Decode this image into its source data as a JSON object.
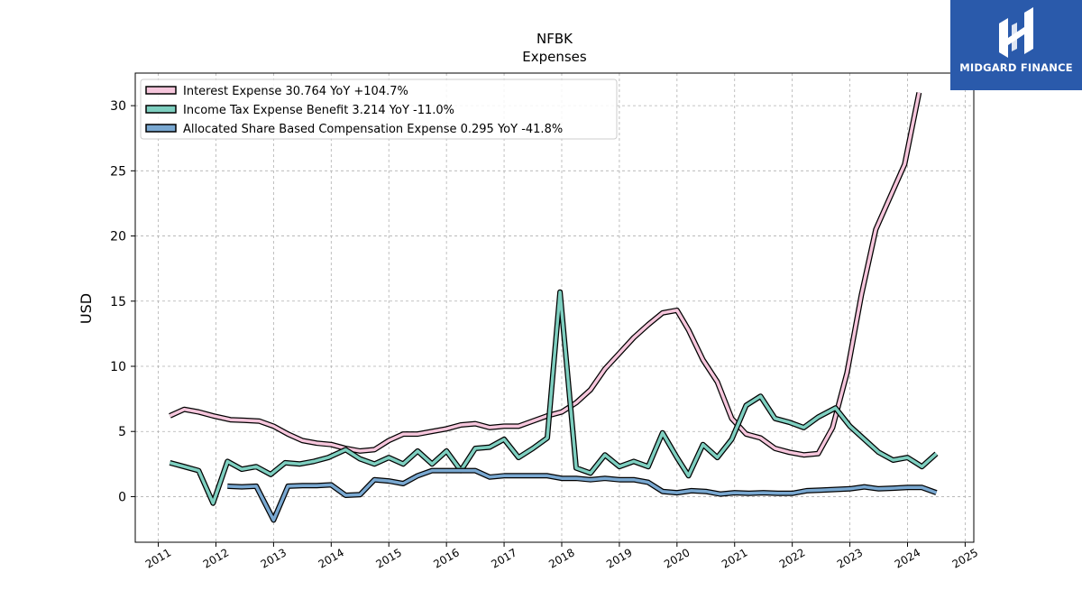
{
  "branding": {
    "logo_text": "MIDGARD FINANCE"
  },
  "chart_data": {
    "type": "line",
    "title": "NFBK",
    "subtitle": "Expenses",
    "xlabel": "",
    "ylabel": "USD",
    "xlim": [
      2010.6,
      2025.15
    ],
    "ylim": [
      -3.5,
      32.5
    ],
    "x_ticks": [
      2011,
      2012,
      2013,
      2014,
      2015,
      2016,
      2017,
      2018,
      2019,
      2020,
      2021,
      2022,
      2023,
      2024,
      2025
    ],
    "y_ticks": [
      0,
      5,
      10,
      15,
      20,
      25,
      30
    ],
    "grid": true,
    "legend_position": "upper-left",
    "series": [
      {
        "name": "Interest Expense  30.764 YoY +104.7%",
        "color": "#f6c6dc",
        "points": [
          [
            2011.2,
            6.2
          ],
          [
            2011.45,
            6.7
          ],
          [
            2011.7,
            6.5
          ],
          [
            2011.95,
            6.2
          ],
          [
            2012.25,
            5.9
          ],
          [
            2012.5,
            5.85
          ],
          [
            2012.75,
            5.8
          ],
          [
            2013.0,
            5.4
          ],
          [
            2013.25,
            4.8
          ],
          [
            2013.5,
            4.3
          ],
          [
            2013.75,
            4.1
          ],
          [
            2014.0,
            4.0
          ],
          [
            2014.25,
            3.7
          ],
          [
            2014.5,
            3.5
          ],
          [
            2014.75,
            3.6
          ],
          [
            2015.0,
            4.3
          ],
          [
            2015.25,
            4.8
          ],
          [
            2015.5,
            4.8
          ],
          [
            2015.75,
            5.0
          ],
          [
            2016.0,
            5.2
          ],
          [
            2016.25,
            5.5
          ],
          [
            2016.5,
            5.6
          ],
          [
            2016.75,
            5.3
          ],
          [
            2017.0,
            5.4
          ],
          [
            2017.25,
            5.4
          ],
          [
            2017.5,
            5.8
          ],
          [
            2017.75,
            6.2
          ],
          [
            2018.0,
            6.5
          ],
          [
            2018.25,
            7.2
          ],
          [
            2018.5,
            8.2
          ],
          [
            2018.75,
            9.8
          ],
          [
            2019.0,
            11.0
          ],
          [
            2019.25,
            12.2
          ],
          [
            2019.5,
            13.2
          ],
          [
            2019.75,
            14.1
          ],
          [
            2020.0,
            14.3
          ],
          [
            2020.2,
            12.8
          ],
          [
            2020.45,
            10.5
          ],
          [
            2020.7,
            8.8
          ],
          [
            2020.95,
            6.0
          ],
          [
            2021.2,
            4.8
          ],
          [
            2021.45,
            4.5
          ],
          [
            2021.7,
            3.7
          ],
          [
            2021.95,
            3.4
          ],
          [
            2022.2,
            3.2
          ],
          [
            2022.45,
            3.3
          ],
          [
            2022.7,
            5.3
          ],
          [
            2022.95,
            9.5
          ],
          [
            2023.2,
            15.5
          ],
          [
            2023.45,
            20.5
          ],
          [
            2023.7,
            23.0
          ],
          [
            2023.95,
            25.5
          ],
          [
            2024.2,
            31.0
          ]
        ]
      },
      {
        "name": "Income Tax Expense Benefit  3.214 YoY -11.0%",
        "color": "#7ecfc0",
        "points": [
          [
            2011.2,
            2.6
          ],
          [
            2011.45,
            2.3
          ],
          [
            2011.7,
            2.0
          ],
          [
            2011.95,
            -0.5
          ],
          [
            2012.2,
            2.7
          ],
          [
            2012.45,
            2.1
          ],
          [
            2012.7,
            2.3
          ],
          [
            2012.95,
            1.7
          ],
          [
            2013.2,
            2.6
          ],
          [
            2013.45,
            2.5
          ],
          [
            2013.7,
            2.7
          ],
          [
            2013.95,
            3.0
          ],
          [
            2014.25,
            3.6
          ],
          [
            2014.5,
            2.9
          ],
          [
            2014.75,
            2.5
          ],
          [
            2015.0,
            3.0
          ],
          [
            2015.25,
            2.5
          ],
          [
            2015.5,
            3.5
          ],
          [
            2015.75,
            2.5
          ],
          [
            2016.0,
            3.5
          ],
          [
            2016.25,
            2.0
          ],
          [
            2016.5,
            3.7
          ],
          [
            2016.75,
            3.8
          ],
          [
            2017.0,
            4.4
          ],
          [
            2017.25,
            3.0
          ],
          [
            2017.5,
            3.7
          ],
          [
            2017.75,
            4.5
          ],
          [
            2017.97,
            15.7
          ],
          [
            2018.25,
            2.2
          ],
          [
            2018.5,
            1.8
          ],
          [
            2018.75,
            3.2
          ],
          [
            2019.0,
            2.3
          ],
          [
            2019.25,
            2.7
          ],
          [
            2019.5,
            2.3
          ],
          [
            2019.75,
            4.9
          ],
          [
            2020.0,
            3.0
          ],
          [
            2020.2,
            1.6
          ],
          [
            2020.45,
            4.0
          ],
          [
            2020.7,
            3.0
          ],
          [
            2020.95,
            4.4
          ],
          [
            2021.2,
            7.0
          ],
          [
            2021.45,
            7.7
          ],
          [
            2021.7,
            6.0
          ],
          [
            2021.95,
            5.7
          ],
          [
            2022.2,
            5.3
          ],
          [
            2022.45,
            6.1
          ],
          [
            2022.75,
            6.8
          ],
          [
            2023.0,
            5.4
          ],
          [
            2023.25,
            4.4
          ],
          [
            2023.5,
            3.4
          ],
          [
            2023.75,
            2.8
          ],
          [
            2024.0,
            3.0
          ],
          [
            2024.25,
            2.3
          ],
          [
            2024.5,
            3.3
          ]
        ]
      },
      {
        "name": "Allocated Share Based Compensation Expense  0.295 YoY -41.8%",
        "color": "#79a8d1",
        "points": [
          [
            2012.2,
            0.8
          ],
          [
            2012.45,
            0.75
          ],
          [
            2012.7,
            0.8
          ],
          [
            2013.0,
            -1.8
          ],
          [
            2013.25,
            0.8
          ],
          [
            2013.5,
            0.85
          ],
          [
            2013.75,
            0.85
          ],
          [
            2014.0,
            0.9
          ],
          [
            2014.25,
            0.1
          ],
          [
            2014.5,
            0.15
          ],
          [
            2014.75,
            1.3
          ],
          [
            2015.0,
            1.2
          ],
          [
            2015.25,
            1.0
          ],
          [
            2015.5,
            1.6
          ],
          [
            2015.75,
            2.0
          ],
          [
            2016.0,
            2.0
          ],
          [
            2016.25,
            2.0
          ],
          [
            2016.5,
            2.0
          ],
          [
            2016.75,
            1.5
          ],
          [
            2017.0,
            1.6
          ],
          [
            2017.25,
            1.6
          ],
          [
            2017.5,
            1.6
          ],
          [
            2017.75,
            1.6
          ],
          [
            2018.0,
            1.4
          ],
          [
            2018.25,
            1.4
          ],
          [
            2018.5,
            1.3
          ],
          [
            2018.75,
            1.4
          ],
          [
            2019.0,
            1.3
          ],
          [
            2019.25,
            1.3
          ],
          [
            2019.5,
            1.1
          ],
          [
            2019.75,
            0.4
          ],
          [
            2020.0,
            0.3
          ],
          [
            2020.25,
            0.45
          ],
          [
            2020.5,
            0.4
          ],
          [
            2020.75,
            0.2
          ],
          [
            2021.0,
            0.3
          ],
          [
            2021.25,
            0.25
          ],
          [
            2021.5,
            0.3
          ],
          [
            2021.75,
            0.25
          ],
          [
            2022.0,
            0.25
          ],
          [
            2022.25,
            0.45
          ],
          [
            2022.5,
            0.5
          ],
          [
            2022.75,
            0.55
          ],
          [
            2023.0,
            0.6
          ],
          [
            2023.25,
            0.75
          ],
          [
            2023.5,
            0.6
          ],
          [
            2023.75,
            0.65
          ],
          [
            2024.0,
            0.7
          ],
          [
            2024.25,
            0.7
          ],
          [
            2024.5,
            0.3
          ]
        ]
      }
    ]
  }
}
